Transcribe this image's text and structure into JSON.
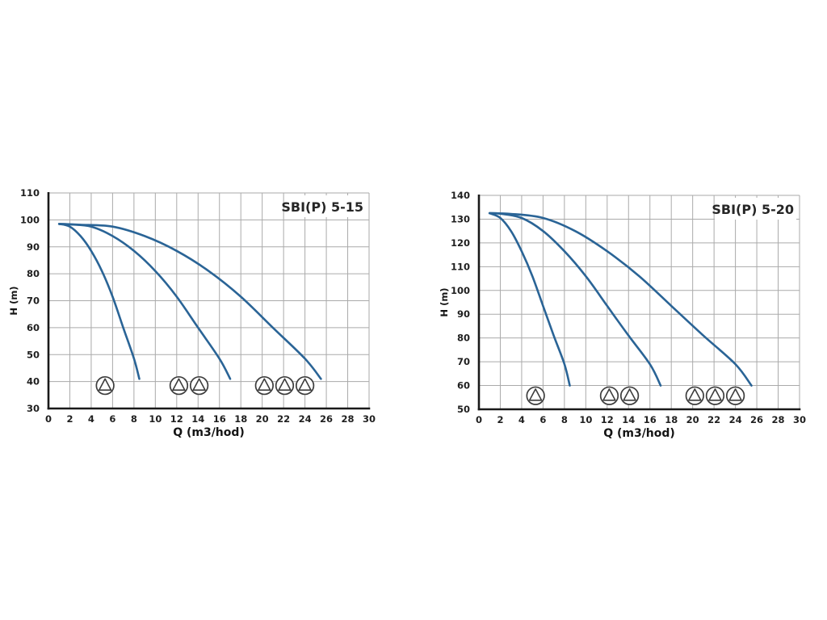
{
  "figure": {
    "background": "#ffffff",
    "description": "Pump performance curves for SBI(P) booster sets, head H versus flow Q, for 1, 2 and 3 pumps running"
  },
  "styles": {
    "curve_color": "#2a6496",
    "grid_color": "#aaaaaa",
    "axis_color": "#1a1a1a",
    "text_color": "#1f1f1f",
    "icon_stroke": "#3d3d3d",
    "title_color": "#262626"
  },
  "chart_data": [
    {
      "type": "line",
      "title": "SBI(P) 5-15",
      "xlabel": "Q (m3/hod)",
      "ylabel": "H (m)",
      "xlim": [
        0,
        30
      ],
      "ylim": [
        30,
        110
      ],
      "xticks": [
        0,
        2,
        4,
        6,
        8,
        10,
        12,
        14,
        16,
        18,
        20,
        22,
        24,
        26,
        28,
        30
      ],
      "yticks": [
        30,
        40,
        50,
        60,
        70,
        80,
        90,
        100,
        110
      ],
      "grid": true,
      "legend_position": "none",
      "series": [
        {
          "name": "1 pump",
          "points": [
            [
              1,
              98.5
            ],
            [
              2,
              97.5
            ],
            [
              3,
              94
            ],
            [
              4,
              88.5
            ],
            [
              5,
              81
            ],
            [
              6,
              71.5
            ],
            [
              7,
              60
            ],
            [
              8,
              48.5
            ],
            [
              8.5,
              41
            ]
          ]
        },
        {
          "name": "2 pumps",
          "points": [
            [
              1,
              98.5
            ],
            [
              2,
              98.3
            ],
            [
              4,
              97.5
            ],
            [
              6,
              94
            ],
            [
              8,
              88.5
            ],
            [
              10,
              81
            ],
            [
              12,
              71.5
            ],
            [
              14,
              60
            ],
            [
              16,
              48.5
            ],
            [
              17,
              41
            ]
          ]
        },
        {
          "name": "3 pumps",
          "points": [
            [
              1,
              98.5
            ],
            [
              3,
              98.2
            ],
            [
              6,
              97.5
            ],
            [
              9,
              94
            ],
            [
              12,
              88.5
            ],
            [
              15,
              81
            ],
            [
              18,
              71.5
            ],
            [
              21,
              60
            ],
            [
              24,
              48.5
            ],
            [
              25.5,
              41
            ]
          ]
        }
      ],
      "pump_icon_groups": {
        "h": 38.5,
        "q_groups": [
          [
            5.3
          ],
          [
            12.2,
            14.1
          ],
          [
            20.2,
            22.1,
            24.0
          ]
        ]
      }
    },
    {
      "type": "line",
      "title": "SBI(P) 5-20",
      "xlabel": "Q (m3/hod)",
      "ylabel": "H (m)",
      "xlim": [
        0,
        30
      ],
      "ylim": [
        50,
        140
      ],
      "xticks": [
        0,
        2,
        4,
        6,
        8,
        10,
        12,
        14,
        16,
        18,
        20,
        22,
        24,
        26,
        28,
        30
      ],
      "yticks": [
        50,
        60,
        70,
        80,
        90,
        100,
        110,
        120,
        130,
        140
      ],
      "grid": true,
      "legend_position": "none",
      "series": [
        {
          "name": "1 pump",
          "points": [
            [
              1,
              132.5
            ],
            [
              2,
              130.5
            ],
            [
              3,
              125
            ],
            [
              4,
              116.5
            ],
            [
              5,
              106
            ],
            [
              6,
              93.5
            ],
            [
              7,
              81
            ],
            [
              8,
              69
            ],
            [
              8.5,
              60
            ]
          ]
        },
        {
          "name": "2 pumps",
          "points": [
            [
              1,
              132.5
            ],
            [
              2,
              132.3
            ],
            [
              4,
              130.5
            ],
            [
              6,
              125
            ],
            [
              8,
              116.5
            ],
            [
              10,
              106
            ],
            [
              12,
              93.5
            ],
            [
              14,
              81
            ],
            [
              16,
              69
            ],
            [
              17,
              60
            ]
          ]
        },
        {
          "name": "3 pumps",
          "points": [
            [
              1,
              132.5
            ],
            [
              3,
              132.2
            ],
            [
              6,
              130.5
            ],
            [
              9,
              125
            ],
            [
              12,
              116.5
            ],
            [
              15,
              106
            ],
            [
              18,
              93.5
            ],
            [
              21,
              81
            ],
            [
              24,
              69
            ],
            [
              25.5,
              60
            ]
          ]
        }
      ],
      "pump_icon_groups": {
        "h": 55.7,
        "q_groups": [
          [
            5.3
          ],
          [
            12.2,
            14.1
          ],
          [
            20.2,
            22.1,
            24.0
          ]
        ]
      }
    }
  ]
}
